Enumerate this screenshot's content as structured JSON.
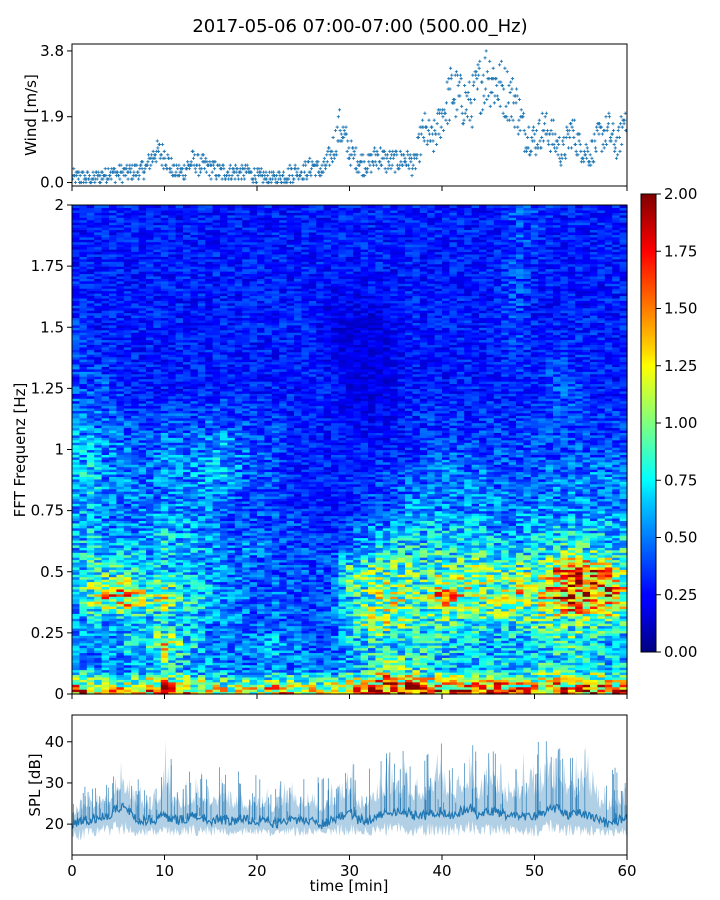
{
  "figure": {
    "title": "2017-05-06 07:00-07:00 (500.00_Hz)"
  },
  "chart_data": [
    {
      "type": "scatter",
      "panel": "wind",
      "title": "",
      "xlabel": "",
      "ylabel": "Wind [m/s]",
      "xlim": [
        0,
        60
      ],
      "ylim": [
        -0.1,
        4.0
      ],
      "yticks": [
        {
          "value": 0.0,
          "label": "0.0"
        },
        {
          "value": 1.9,
          "label": "1.9"
        },
        {
          "value": 3.8,
          "label": "3.8"
        }
      ],
      "marker": "+",
      "color": "#1f77b4",
      "profile_note_free": true,
      "x": [
        0,
        1,
        2,
        3,
        4,
        5,
        6,
        7,
        8,
        9,
        10,
        11,
        12,
        13,
        14,
        15,
        16,
        17,
        18,
        19,
        20,
        21,
        22,
        23,
        24,
        25,
        26,
        27,
        28,
        29,
        30,
        31,
        32,
        33,
        34,
        35,
        36,
        37,
        38,
        39,
        40,
        41,
        42,
        43,
        44,
        45,
        46,
        47,
        48,
        49,
        50,
        51,
        52,
        53,
        54,
        55,
        56,
        57,
        58,
        59,
        60
      ],
      "y": [
        0.15,
        0.15,
        0.1,
        0.15,
        0.3,
        0.25,
        0.3,
        0.3,
        0.4,
        0.9,
        0.8,
        0.3,
        0.3,
        0.6,
        0.5,
        0.4,
        0.3,
        0.3,
        0.3,
        0.3,
        0.15,
        0.15,
        0.1,
        0.2,
        0.3,
        0.3,
        0.5,
        0.3,
        0.8,
        1.6,
        0.9,
        0.6,
        0.5,
        0.8,
        0.6,
        0.6,
        0.7,
        0.5,
        1.5,
        1.2,
        1.9,
        2.6,
        2.4,
        2.2,
        2.8,
        3.2,
        2.8,
        2.6,
        2.3,
        1.4,
        1.2,
        1.6,
        1.3,
        0.8,
        1.5,
        1.0,
        0.8,
        1.3,
        1.5,
        1.0,
        2.2
      ]
    },
    {
      "type": "heatmap",
      "panel": "spectrogram",
      "title": "",
      "xlabel": "",
      "ylabel": "FFT Frequenz [Hz]",
      "xlim": [
        0,
        60
      ],
      "ylim": [
        0,
        2
      ],
      "yticks": [
        {
          "value": 0,
          "label": "0"
        },
        {
          "value": 0.25,
          "label": "0.25"
        },
        {
          "value": 0.5,
          "label": "0.5"
        },
        {
          "value": 0.75,
          "label": "0.75"
        },
        {
          "value": 1,
          "label": "1"
        },
        {
          "value": 1.25,
          "label": "1.25"
        },
        {
          "value": 1.5,
          "label": "1.5"
        },
        {
          "value": 1.75,
          "label": "1.75"
        },
        {
          "value": 2,
          "label": "2"
        }
      ],
      "colormap": "jet",
      "colorbar": {
        "range": [
          0.0,
          2.0
        ],
        "ticks": [
          "0.00",
          "0.25",
          "0.50",
          "0.75",
          "1.00",
          "1.25",
          "1.50",
          "1.75",
          "2.00"
        ]
      },
      "time_minutes": [
        0,
        2,
        4,
        6,
        8,
        10,
        12,
        14,
        16,
        18,
        20,
        22,
        24,
        26,
        28,
        30,
        32,
        34,
        36,
        38,
        40,
        42,
        44,
        46,
        48,
        50,
        52,
        54,
        56,
        58,
        60
      ],
      "frequency_hz": [
        0.02,
        0.1,
        0.2,
        0.3,
        0.4,
        0.5,
        0.6,
        0.7,
        0.8,
        0.9,
        1.0,
        1.25,
        1.5,
        1.75,
        2.0
      ],
      "values": [
        [
          1.5,
          1.4,
          1.3,
          1.2,
          1.4,
          1.6,
          1.4,
          1.2,
          1.2,
          1.1,
          1.2,
          1.4,
          1.3,
          1.1,
          1.2,
          1.3,
          1.5,
          1.9,
          1.8,
          1.6,
          1.4,
          1.5,
          1.5,
          1.6,
          1.4,
          1.5,
          1.6,
          1.5,
          1.7,
          1.5,
          1.5
        ],
        [
          0.6,
          0.6,
          0.5,
          0.5,
          0.6,
          0.7,
          0.6,
          0.6,
          0.5,
          0.5,
          0.5,
          0.5,
          0.5,
          0.5,
          0.5,
          0.6,
          0.7,
          1.1,
          0.9,
          0.8,
          0.7,
          0.7,
          0.6,
          0.7,
          0.6,
          0.7,
          0.8,
          0.7,
          0.8,
          0.7,
          0.7
        ],
        [
          0.5,
          0.5,
          0.5,
          0.7,
          0.6,
          1.2,
          0.8,
          0.6,
          0.5,
          0.5,
          0.5,
          0.6,
          0.5,
          0.4,
          0.4,
          0.6,
          0.7,
          0.7,
          0.7,
          0.7,
          0.7,
          0.6,
          0.6,
          0.6,
          0.6,
          0.6,
          0.7,
          0.8,
          0.7,
          0.6,
          0.6
        ],
        [
          0.5,
          0.6,
          0.6,
          0.6,
          0.6,
          0.7,
          0.6,
          0.6,
          0.5,
          0.5,
          0.4,
          0.5,
          0.4,
          0.4,
          0.4,
          0.8,
          1.0,
          1.1,
          0.9,
          0.8,
          0.8,
          0.8,
          0.8,
          0.8,
          0.8,
          0.9,
          0.9,
          0.9,
          0.9,
          0.9,
          0.8
        ],
        [
          0.6,
          1.0,
          1.3,
          1.5,
          1.0,
          1.2,
          0.8,
          0.7,
          0.5,
          0.5,
          0.4,
          0.5,
          0.4,
          0.4,
          0.4,
          0.7,
          0.9,
          1.2,
          1.0,
          0.9,
          1.4,
          1.2,
          1.0,
          1.0,
          1.3,
          1.0,
          1.4,
          1.8,
          1.6,
          1.5,
          1.1
        ],
        [
          0.5,
          0.8,
          0.8,
          0.8,
          0.6,
          0.7,
          0.6,
          0.6,
          0.5,
          0.5,
          0.4,
          0.4,
          0.4,
          0.4,
          0.4,
          0.9,
          0.9,
          1.0,
          0.9,
          0.8,
          1.0,
          1.0,
          1.0,
          0.9,
          0.9,
          1.0,
          1.3,
          1.6,
          1.5,
          1.3,
          1.0
        ],
        [
          0.6,
          0.7,
          0.6,
          0.6,
          0.6,
          0.7,
          0.6,
          0.6,
          0.5,
          0.5,
          0.5,
          0.4,
          0.4,
          0.4,
          0.4,
          0.5,
          0.6,
          0.7,
          0.7,
          0.7,
          0.7,
          0.7,
          0.7,
          0.7,
          0.6,
          0.7,
          0.8,
          0.8,
          0.8,
          0.7,
          0.7
        ],
        [
          0.6,
          0.6,
          0.5,
          0.5,
          0.5,
          0.6,
          0.6,
          0.5,
          0.5,
          0.4,
          0.4,
          0.4,
          0.4,
          0.3,
          0.3,
          0.4,
          0.5,
          0.5,
          0.6,
          0.6,
          0.6,
          0.6,
          0.6,
          0.5,
          0.5,
          0.6,
          0.6,
          0.6,
          0.6,
          0.6,
          0.6
        ],
        [
          0.6,
          0.6,
          0.5,
          0.5,
          0.5,
          0.5,
          0.5,
          0.5,
          0.5,
          0.4,
          0.4,
          0.4,
          0.3,
          0.3,
          0.3,
          0.3,
          0.4,
          0.4,
          0.5,
          0.5,
          0.5,
          0.5,
          0.5,
          0.5,
          0.5,
          0.5,
          0.5,
          0.5,
          0.5,
          0.5,
          0.5
        ],
        [
          0.6,
          0.7,
          0.5,
          0.5,
          0.5,
          0.5,
          0.5,
          0.6,
          0.6,
          0.5,
          0.4,
          0.4,
          0.3,
          0.3,
          0.3,
          0.3,
          0.3,
          0.4,
          0.4,
          0.4,
          0.5,
          0.5,
          0.5,
          0.4,
          0.4,
          0.4,
          0.5,
          0.5,
          0.5,
          0.5,
          0.5
        ],
        [
          0.6,
          0.6,
          0.5,
          0.5,
          0.4,
          0.5,
          0.5,
          0.5,
          0.6,
          0.5,
          0.4,
          0.4,
          0.3,
          0.3,
          0.3,
          0.3,
          0.3,
          0.3,
          0.3,
          0.4,
          0.4,
          0.4,
          0.4,
          0.4,
          0.4,
          0.4,
          0.4,
          0.4,
          0.4,
          0.4,
          0.4
        ],
        [
          0.4,
          0.4,
          0.4,
          0.3,
          0.3,
          0.3,
          0.3,
          0.3,
          0.3,
          0.3,
          0.3,
          0.3,
          0.3,
          0.3,
          0.3,
          0.2,
          0.2,
          0.2,
          0.3,
          0.3,
          0.3,
          0.3,
          0.3,
          0.3,
          0.3,
          0.3,
          0.4,
          0.4,
          0.3,
          0.3,
          0.3
        ],
        [
          0.35,
          0.3,
          0.3,
          0.3,
          0.3,
          0.3,
          0.3,
          0.3,
          0.3,
          0.3,
          0.3,
          0.3,
          0.3,
          0.3,
          0.2,
          0.2,
          0.2,
          0.2,
          0.3,
          0.3,
          0.3,
          0.3,
          0.3,
          0.3,
          0.4,
          0.3,
          0.3,
          0.3,
          0.3,
          0.3,
          0.3
        ],
        [
          0.3,
          0.3,
          0.3,
          0.3,
          0.3,
          0.3,
          0.3,
          0.3,
          0.3,
          0.3,
          0.3,
          0.3,
          0.3,
          0.3,
          0.3,
          0.3,
          0.3,
          0.3,
          0.3,
          0.3,
          0.3,
          0.3,
          0.3,
          0.3,
          0.4,
          0.3,
          0.3,
          0.3,
          0.3,
          0.3,
          0.3
        ],
        [
          0.3,
          0.3,
          0.3,
          0.3,
          0.3,
          0.3,
          0.3,
          0.3,
          0.3,
          0.3,
          0.3,
          0.3,
          0.3,
          0.3,
          0.3,
          0.3,
          0.3,
          0.3,
          0.3,
          0.3,
          0.3,
          0.3,
          0.3,
          0.3,
          0.4,
          0.4,
          0.3,
          0.3,
          0.3,
          0.3,
          0.3
        ]
      ]
    },
    {
      "type": "line",
      "panel": "spl",
      "title": "",
      "xlabel": "time [min]",
      "ylabel": "SPL [dB]",
      "xlim": [
        0,
        60
      ],
      "ylim": [
        12.5,
        46.5
      ],
      "xticks": [
        {
          "value": 0,
          "label": "0"
        },
        {
          "value": 10,
          "label": "10"
        },
        {
          "value": 20,
          "label": "20"
        },
        {
          "value": 30,
          "label": "30"
        },
        {
          "value": 40,
          "label": "40"
        },
        {
          "value": 50,
          "label": "50"
        },
        {
          "value": 60,
          "label": "60"
        }
      ],
      "yticks": [
        {
          "value": 20,
          "label": "20"
        },
        {
          "value": 30,
          "label": "30"
        },
        {
          "value": 40,
          "label": "40"
        }
      ],
      "color": "#1f77b4",
      "x": [
        0,
        1,
        2,
        3,
        4,
        5,
        6,
        7,
        8,
        9,
        10,
        11,
        12,
        13,
        14,
        15,
        16,
        17,
        18,
        19,
        20,
        21,
        22,
        23,
        24,
        25,
        26,
        27,
        28,
        29,
        30,
        31,
        32,
        33,
        34,
        35,
        36,
        37,
        38,
        39,
        40,
        41,
        42,
        43,
        44,
        45,
        46,
        47,
        48,
        49,
        50,
        51,
        52,
        53,
        54,
        55,
        56,
        57,
        58,
        59,
        60
      ],
      "y_low": [
        16,
        16,
        17,
        17,
        17,
        17,
        17,
        17,
        17,
        17,
        17,
        17,
        17,
        17,
        17,
        17,
        17,
        17,
        17,
        17,
        17,
        17,
        17,
        17,
        17,
        17,
        17,
        17,
        17,
        17,
        17,
        17,
        17,
        17,
        17,
        17,
        17,
        17,
        17,
        17,
        17,
        17,
        17,
        17,
        17,
        17,
        17,
        17,
        17,
        17,
        17,
        17,
        17,
        17,
        17,
        17,
        17,
        17,
        17,
        17,
        17
      ],
      "y_high": [
        26,
        30,
        28,
        32,
        30,
        37,
        36,
        32,
        30,
        31,
        43,
        33,
        32,
        34,
        35,
        33,
        34,
        31,
        33,
        30,
        33,
        30,
        30,
        32,
        33,
        32,
        34,
        31,
        33,
        34,
        39,
        31,
        34,
        36,
        40,
        37,
        38,
        36,
        37,
        39,
        40,
        37,
        38,
        42,
        36,
        42,
        40,
        34,
        37,
        38,
        40,
        41,
        42,
        40,
        38,
        41,
        40,
        32,
        33,
        34,
        34
      ],
      "y_mid": [
        20,
        21,
        21,
        22,
        22,
        24,
        24,
        21,
        21,
        21,
        22,
        21,
        21,
        22,
        22,
        21,
        21,
        21,
        21,
        21,
        21,
        21,
        20,
        21,
        21,
        21,
        21,
        20,
        21,
        22,
        23,
        21,
        21,
        22,
        23,
        23,
        23,
        22,
        22,
        23,
        23,
        22,
        23,
        24,
        22,
        23,
        23,
        22,
        22,
        22,
        22,
        23,
        24,
        23,
        22,
        23,
        22,
        21,
        20,
        21,
        21
      ]
    }
  ]
}
